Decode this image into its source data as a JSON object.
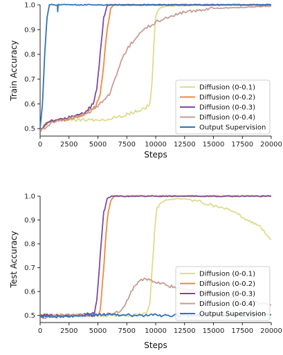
{
  "chart_data": [
    {
      "type": "line",
      "title": "",
      "xlabel": "Steps",
      "ylabel": "Train Accuracy",
      "xlim": [
        0,
        20000
      ],
      "ylim": [
        0.47,
        1.0
      ],
      "xticks": [
        0,
        2500,
        5000,
        7500,
        10000,
        12500,
        15000,
        17500,
        20000
      ],
      "xtick_labels": [
        "0",
        "2500",
        "5000",
        "7500",
        "10000",
        "12500",
        "15000",
        "17500",
        "20000"
      ],
      "yticks": [
        0.5,
        0.6,
        0.7,
        0.8,
        0.9,
        1.0
      ],
      "ytick_labels": [
        "0.5",
        "0.6",
        "0.7",
        "0.8",
        "0.9",
        "1.0"
      ],
      "grid": false,
      "legend_position": "lower-right",
      "series": [
        {
          "name": "Diffusion (0-0.1)",
          "color": "#dcdc8c",
          "x": [
            0,
            500,
            1000,
            2000,
            3000,
            4000,
            5000,
            6000,
            7000,
            8000,
            9000,
            9500,
            9700,
            9850,
            10000,
            10300,
            11000,
            13000,
            20000
          ],
          "y": [
            0.49,
            0.52,
            0.53,
            0.535,
            0.535,
            0.535,
            0.535,
            0.54,
            0.55,
            0.565,
            0.58,
            0.6,
            0.7,
            0.85,
            0.95,
            0.985,
            0.995,
            0.998,
            1.0
          ]
        },
        {
          "name": "Diffusion (0-0.2)",
          "color": "#f0873c",
          "x": [
            0,
            500,
            1000,
            2000,
            3000,
            4000,
            4800,
            5200,
            5500,
            5800,
            6100,
            6400,
            20000
          ],
          "y": [
            0.49,
            0.52,
            0.53,
            0.535,
            0.545,
            0.56,
            0.59,
            0.64,
            0.76,
            0.9,
            0.985,
            1.0,
            1.0
          ]
        },
        {
          "name": "Diffusion (0-0.3)",
          "color": "#7b4a9c",
          "x": [
            0,
            500,
            1000,
            2000,
            3000,
            4000,
            4600,
            4900,
            5200,
            5500,
            5800,
            6000,
            20000
          ],
          "y": [
            0.49,
            0.52,
            0.53,
            0.54,
            0.55,
            0.57,
            0.6,
            0.66,
            0.8,
            0.95,
            0.995,
            1.0,
            1.0
          ]
        },
        {
          "name": "Diffusion (0-0.4)",
          "color": "#c79a93",
          "x": [
            0,
            1000,
            2000,
            3000,
            4000,
            5000,
            6000,
            6500,
            7000,
            7500,
            8000,
            8500,
            9000,
            10000,
            11000,
            12000,
            13000,
            15000,
            17500,
            20000
          ],
          "y": [
            0.49,
            0.525,
            0.535,
            0.545,
            0.56,
            0.59,
            0.64,
            0.7,
            0.77,
            0.82,
            0.85,
            0.88,
            0.9,
            0.93,
            0.95,
            0.965,
            0.975,
            0.985,
            0.99,
            0.995
          ]
        },
        {
          "name": "Output Supervision",
          "color": "#2e73b8",
          "x": [
            0,
            200,
            400,
            600,
            800,
            1000,
            1200,
            1500,
            1520,
            1560,
            1600,
            20000
          ],
          "y": [
            0.5,
            0.6,
            0.8,
            0.95,
            1.0,
            1.0,
            1.0,
            1.0,
            0.97,
            1.0,
            1.0,
            1.0
          ]
        }
      ]
    },
    {
      "type": "line",
      "title": "",
      "xlabel": "Steps",
      "ylabel": "Test Accuracy",
      "xlim": [
        0,
        20000
      ],
      "ylim": [
        0.47,
        1.0
      ],
      "xticks": [
        0,
        2500,
        5000,
        7500,
        10000,
        12500,
        15000,
        17500,
        20000
      ],
      "xtick_labels": [
        "0",
        "2500",
        "5000",
        "7500",
        "10000",
        "12500",
        "15000",
        "17500",
        "20000"
      ],
      "yticks": [
        0.5,
        0.6,
        0.7,
        0.8,
        0.9,
        1.0
      ],
      "ytick_labels": [
        "0.5",
        "0.6",
        "0.7",
        "0.8",
        "0.9",
        "1.0"
      ],
      "grid": false,
      "legend_position": "lower-right",
      "series": [
        {
          "name": "Diffusion (0-0.1)",
          "color": "#dcdc8c",
          "x": [
            0,
            2000,
            5000,
            8000,
            9200,
            9500,
            9700,
            9900,
            10100,
            10500,
            11000,
            12000,
            13000,
            14000,
            15000,
            16000,
            17000,
            18000,
            19000,
            19700,
            20000
          ],
          "y": [
            0.5,
            0.5,
            0.5,
            0.5,
            0.51,
            0.55,
            0.7,
            0.85,
            0.95,
            0.975,
            0.985,
            0.99,
            0.985,
            0.975,
            0.96,
            0.95,
            0.93,
            0.9,
            0.875,
            0.83,
            0.82
          ]
        },
        {
          "name": "Diffusion (0-0.2)",
          "color": "#f0873c",
          "x": [
            0,
            3000,
            5000,
            5200,
            5500,
            5800,
            6100,
            6500,
            20000
          ],
          "y": [
            0.5,
            0.5,
            0.5,
            0.52,
            0.7,
            0.9,
            0.985,
            1.0,
            1.0
          ]
        },
        {
          "name": "Diffusion (0-0.3)",
          "color": "#7b4a9c",
          "x": [
            0,
            3000,
            4700,
            4900,
            5200,
            5500,
            5800,
            6200,
            20000
          ],
          "y": [
            0.5,
            0.5,
            0.51,
            0.56,
            0.75,
            0.93,
            0.99,
            1.0,
            1.0
          ]
        },
        {
          "name": "Diffusion (0-0.4)",
          "color": "#c79a93",
          "x": [
            0,
            2000,
            4000,
            6000,
            7000,
            7500,
            8000,
            8500,
            9000,
            9500,
            10000,
            11000,
            12000,
            13000,
            14000,
            15000,
            16000,
            17000,
            18000,
            19000,
            20000
          ],
          "y": [
            0.49,
            0.5,
            0.5,
            0.505,
            0.52,
            0.56,
            0.61,
            0.64,
            0.655,
            0.65,
            0.64,
            0.625,
            0.615,
            0.605,
            0.6,
            0.59,
            0.58,
            0.57,
            0.56,
            0.55,
            0.545
          ]
        },
        {
          "name": "Output Supervision",
          "color": "#2e73b8",
          "x": [
            0,
            2000,
            4000,
            6000,
            8000,
            10000,
            12000,
            14000,
            16000,
            18000,
            20000
          ],
          "y": [
            0.495,
            0.495,
            0.5,
            0.505,
            0.5,
            0.5,
            0.5,
            0.5,
            0.5,
            0.5,
            0.505
          ]
        }
      ]
    }
  ]
}
